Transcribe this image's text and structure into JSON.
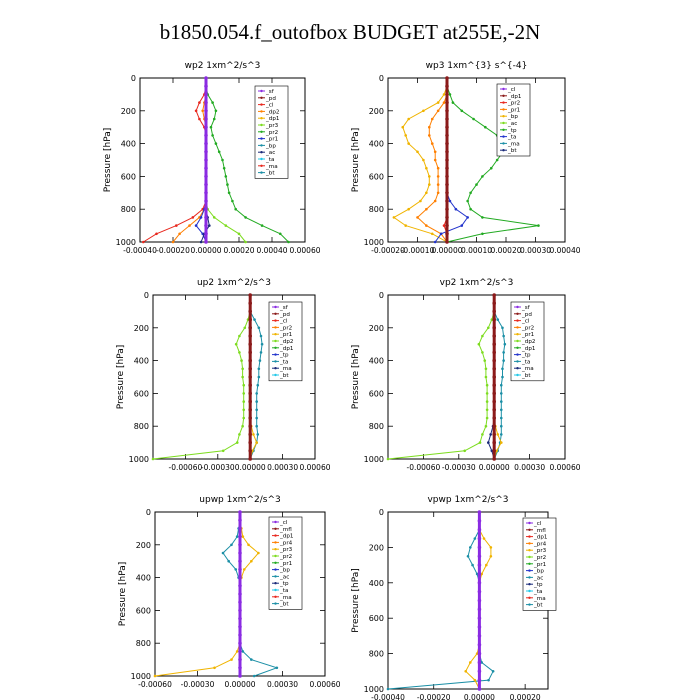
{
  "title": "b1850.054.f_outofbox  BUDGET at255E,-2N",
  "colors": {
    "maroon": "#8b1a1a",
    "red": "#e8271d",
    "orange": "#ff7f00",
    "gold": "#f0b400",
    "green": "#22aa22",
    "lime": "#7ddc1f",
    "blue": "#2233cc",
    "teal": "#1b8fa6",
    "cyan": "#22c8e8",
    "purple": "#8a2be2",
    "navy": "#1a2a7a"
  },
  "chart_data": [
    {
      "type": "line",
      "title": "wp2   1xm^2/s^3",
      "ylabel": "Pressure [hPa]",
      "xlim": [
        -0.0004,
        0.0006
      ],
      "ylim": [
        1000,
        0
      ],
      "xticks": [
        -0.0004,
        -0.0002,
        0,
        0.0002,
        0.0004,
        0.0006
      ],
      "xtick_labels": [
        "-0.00040",
        "-0.00020",
        "0.00000",
        "0.00020",
        "0.00040",
        "0.00060"
      ],
      "yticks": [
        0,
        200,
        400,
        600,
        800,
        1000
      ],
      "y": [
        0,
        50,
        100,
        150,
        200,
        250,
        300,
        350,
        400,
        450,
        500,
        550,
        600,
        650,
        700,
        750,
        800,
        850,
        900,
        950,
        1000
      ],
      "legend": [
        "_sf",
        "_pd",
        "_cl",
        "_dp2",
        "_dp1",
        "_pr3",
        "_pr2",
        "_pr1",
        "_bp",
        "_ac",
        "_ta",
        "_ma",
        "_bt"
      ],
      "series": [
        {
          "name": "_cl",
          "color": "red",
          "values": [
            0,
            0,
            -1e-05,
            -4e-05,
            -6e-05,
            -4e-05,
            -1e-05,
            0,
            0,
            0,
            0,
            0,
            0,
            0,
            0,
            0,
            -2e-05,
            -8e-05,
            -0.00018,
            -0.0003,
            -0.00038
          ]
        },
        {
          "name": "_dp2",
          "color": "orange",
          "values": [
            0,
            0,
            0,
            -1e-05,
            -2e-05,
            -1e-05,
            0,
            0,
            0,
            0,
            0,
            0,
            0,
            0,
            0,
            0,
            -1e-05,
            -4e-05,
            -0.0001,
            -0.00016,
            -0.0002
          ]
        },
        {
          "name": "_pr2",
          "color": "green",
          "values": [
            0,
            0,
            1e-05,
            4e-05,
            6e-05,
            5e-05,
            3e-05,
            4e-05,
            6e-05,
            8e-05,
            0.0001,
            0.00011,
            0.00012,
            0.00013,
            0.00014,
            0.00016,
            0.00018,
            0.00024,
            0.00034,
            0.00045,
            0.0005
          ]
        },
        {
          "name": "_pr1",
          "color": "lime",
          "values": [
            0,
            0,
            0,
            0,
            0,
            0,
            0,
            0,
            0,
            0,
            0,
            0,
            0,
            0,
            0,
            0,
            1e-05,
            5e-05,
            0.00012,
            0.0002,
            0.00024
          ]
        },
        {
          "name": "_dp1",
          "color": "blue",
          "values": [
            0,
            0,
            0,
            0,
            0,
            0,
            0,
            0,
            0,
            0,
            0,
            0,
            0,
            0,
            0,
            0,
            -1e-05,
            -3e-05,
            -6e-05,
            -2e-05,
            0
          ]
        },
        {
          "name": "_bp",
          "color": "navy",
          "values": [
            0,
            0,
            0,
            0,
            0,
            0,
            0,
            0,
            0,
            0,
            0,
            0,
            0,
            0,
            0,
            0,
            0,
            1e-05,
            2e-05,
            -1e-05,
            -3e-05
          ]
        },
        {
          "name": "_bt",
          "color": "purple",
          "values": [
            0,
            0,
            0,
            0,
            0,
            0,
            0,
            0,
            0,
            0,
            0,
            0,
            0,
            0,
            0,
            0,
            0,
            0,
            0,
            0,
            0
          ],
          "bold": true
        }
      ]
    },
    {
      "type": "line",
      "title": "wp3   1xm^{3} s^{-4}",
      "ylabel": "Pressure [hPa]",
      "xlim": [
        -0.0002,
        0.0004
      ],
      "ylim": [
        1000,
        0
      ],
      "xticks": [
        -0.0002,
        -0.0001,
        0,
        0.0001,
        0.0002,
        0.0003,
        0.0004
      ],
      "xtick_labels": [
        "-0.00020",
        "-0.00010",
        "0.00000",
        "0.00010",
        "0.00020",
        "0.00030",
        "0.00040"
      ],
      "yticks": [
        0,
        200,
        400,
        600,
        800,
        1000
      ],
      "y": [
        0,
        50,
        100,
        150,
        200,
        250,
        300,
        350,
        400,
        450,
        500,
        550,
        600,
        650,
        700,
        750,
        800,
        850,
        900,
        950,
        1000
      ],
      "legend": [
        "_cl",
        "_dp1",
        "_pr2",
        "_pr1",
        "_bp",
        "_ac",
        "_tp",
        "_ta",
        "_ma",
        "_bt"
      ],
      "series": [
        {
          "name": "_pr2",
          "color": "gold",
          "values": [
            0,
            0,
            -1e-05,
            -3e-05,
            -8e-05,
            -0.00013,
            -0.00015,
            -0.00014,
            -0.00013,
            -0.0001,
            -8e-05,
            -7e-05,
            -6e-05,
            -6e-05,
            -7e-05,
            -9e-05,
            -0.00013,
            -0.00018,
            -0.00014,
            -5e-05,
            0
          ]
        },
        {
          "name": "_pr1",
          "color": "orange",
          "values": [
            0,
            0,
            0,
            -1e-05,
            -3e-05,
            -5e-05,
            -6e-05,
            -6e-05,
            -5e-05,
            -4e-05,
            -4e-05,
            -3e-05,
            -3e-05,
            -3e-05,
            -3e-05,
            -4e-05,
            -7e-05,
            -0.0001,
            -7e-05,
            -2e-05,
            0
          ]
        },
        {
          "name": "_ac",
          "color": "green",
          "values": [
            0,
            0,
            1e-05,
            2e-05,
            5e-05,
            9e-05,
            0.00013,
            0.00017,
            0.00019,
            0.00019,
            0.00017,
            0.00015,
            0.00012,
            0.0001,
            8e-05,
            7e-05,
            8e-05,
            0.00012,
            0.00031,
            0.00012,
            0
          ]
        },
        {
          "name": "_tp",
          "color": "blue",
          "values": [
            0,
            0,
            0,
            0,
            0,
            0,
            0,
            0,
            0,
            0,
            0,
            0,
            0,
            0,
            0,
            1e-05,
            3e-05,
            7e-05,
            5e-05,
            -2e-05,
            -4e-05
          ]
        },
        {
          "name": "_cl",
          "color": "red",
          "values": [
            0,
            0,
            0,
            0,
            0,
            0,
            0,
            0,
            0,
            0,
            0,
            0,
            0,
            0,
            0,
            0,
            0,
            0,
            -1e-05,
            0,
            0
          ]
        },
        {
          "name": "_bt",
          "color": "maroon",
          "values": [
            0,
            0,
            0,
            0,
            0,
            0,
            0,
            0,
            0,
            0,
            0,
            0,
            0,
            0,
            0,
            0,
            0,
            0,
            0,
            0,
            0
          ],
          "bold": true
        }
      ]
    },
    {
      "type": "line",
      "title": "up2   1xm^2/s^3",
      "ylabel": "Pressure [hPa]",
      "xlim": [
        -0.0009,
        0.0006
      ],
      "ylim": [
        1000,
        0
      ],
      "xticks": [
        -0.0006,
        -0.0003,
        0,
        0.0003,
        0.0006
      ],
      "xtick_labels": [
        "-0.00060",
        "-0.00030",
        "0.00000",
        "0.00030",
        "0.00060"
      ],
      "yticks": [
        0,
        200,
        400,
        600,
        800,
        1000
      ],
      "y": [
        0,
        50,
        100,
        150,
        200,
        250,
        300,
        350,
        400,
        450,
        500,
        550,
        600,
        650,
        700,
        750,
        800,
        850,
        900,
        950,
        1000
      ],
      "legend": [
        "_sf",
        "_pd",
        "_cl",
        "_pr2",
        "_pr1",
        "_dp2",
        "_dp1",
        "_tp",
        "_ta",
        "_ma",
        "_bt"
      ],
      "series": [
        {
          "name": "_dp2",
          "color": "lime",
          "values": [
            0,
            0,
            0,
            -2e-05,
            -5e-05,
            -0.0001,
            -0.00013,
            -0.0001,
            -8e-05,
            -7e-05,
            -7e-05,
            -6e-05,
            -6e-05,
            -6e-05,
            -6e-05,
            -6e-05,
            -7e-05,
            -0.0001,
            -0.00012,
            -0.00025,
            -0.0009
          ]
        },
        {
          "name": "_tp",
          "color": "teal",
          "values": [
            0,
            0,
            0,
            4e-05,
            8e-05,
            0.0001,
            0.00011,
            0.0001,
            9e-05,
            8e-05,
            8e-05,
            7e-05,
            6e-05,
            6e-05,
            6e-05,
            6e-05,
            6e-05,
            7e-05,
            6e-05,
            3e-05,
            0
          ]
        },
        {
          "name": "_pr2",
          "color": "gold",
          "values": [
            0,
            0,
            0,
            0,
            0,
            0,
            0,
            0,
            0,
            0,
            0,
            0,
            0,
            0,
            0,
            0,
            1e-05,
            3e-05,
            6e-05,
            2e-05,
            0
          ]
        },
        {
          "name": "_bt",
          "color": "maroon",
          "values": [
            0,
            0,
            0,
            0,
            0,
            0,
            0,
            0,
            0,
            0,
            0,
            0,
            0,
            0,
            0,
            0,
            0,
            0,
            0,
            0,
            0
          ],
          "bold": true
        }
      ]
    },
    {
      "type": "line",
      "title": "vp2   1xm^2/s^3",
      "ylabel": "Pressure [hPa]",
      "xlim": [
        -0.0009,
        0.0006
      ],
      "ylim": [
        1000,
        0
      ],
      "xticks": [
        -0.0006,
        -0.0003,
        0,
        0.0003,
        0.0006
      ],
      "xtick_labels": [
        "-0.00060",
        "-0.00030",
        "0.00000",
        "0.00030",
        "0.00060"
      ],
      "yticks": [
        0,
        200,
        400,
        600,
        800,
        1000
      ],
      "y": [
        0,
        50,
        100,
        150,
        200,
        250,
        300,
        350,
        400,
        450,
        500,
        550,
        600,
        650,
        700,
        750,
        800,
        850,
        900,
        950,
        1000
      ],
      "legend": [
        "_sf",
        "_pd",
        "_cl",
        "_pr2",
        "_pr1",
        "_dp2",
        "_dp1",
        "_tp",
        "_ta",
        "_ma",
        "_bt"
      ],
      "series": [
        {
          "name": "_dp2",
          "color": "lime",
          "values": [
            0,
            0,
            0,
            -2e-05,
            -5e-05,
            -0.0001,
            -0.00013,
            -0.0001,
            -8e-05,
            -7e-05,
            -7e-05,
            -6e-05,
            -6e-05,
            -6e-05,
            -6e-05,
            -6e-05,
            -7e-05,
            -0.0001,
            -0.00012,
            -0.00025,
            -0.0009
          ]
        },
        {
          "name": "_tp",
          "color": "teal",
          "values": [
            0,
            0,
            0,
            3e-05,
            7e-05,
            8e-05,
            9e-05,
            8e-05,
            8e-05,
            7e-05,
            7e-05,
            6e-05,
            6e-05,
            6e-05,
            6e-05,
            6e-05,
            6e-05,
            6e-05,
            5e-05,
            3e-05,
            0
          ]
        },
        {
          "name": "_pr2",
          "color": "gold",
          "values": [
            0,
            0,
            0,
            0,
            0,
            0,
            0,
            0,
            0,
            0,
            0,
            0,
            0,
            0,
            0,
            0,
            1e-05,
            3e-05,
            6e-05,
            2e-05,
            0
          ]
        },
        {
          "name": "_dp1",
          "color": "navy",
          "values": [
            0,
            0,
            0,
            0,
            0,
            0,
            0,
            0,
            0,
            0,
            0,
            0,
            0,
            0,
            0,
            0,
            -1e-05,
            -3e-05,
            -5e-05,
            -2e-05,
            0
          ]
        },
        {
          "name": "_bt",
          "color": "maroon",
          "values": [
            0,
            0,
            0,
            0,
            0,
            0,
            0,
            0,
            0,
            0,
            0,
            0,
            0,
            0,
            0,
            0,
            0,
            0,
            0,
            0,
            0
          ],
          "bold": true
        }
      ]
    },
    {
      "type": "line",
      "title": "upwp   1xm^2/s^3",
      "ylabel": "Pressure [hPa]",
      "xlim": [
        -0.0006,
        0.0006
      ],
      "ylim": [
        1000,
        0
      ],
      "xticks": [
        -0.0006,
        -0.0003,
        0,
        0.0003,
        0.0006
      ],
      "xtick_labels": [
        "-0.00060",
        "-0.00030",
        "0.00000",
        "0.00030",
        "0.00060"
      ],
      "yticks": [
        0,
        200,
        400,
        600,
        800,
        1000
      ],
      "y": [
        0,
        50,
        100,
        150,
        200,
        250,
        300,
        350,
        400,
        450,
        500,
        550,
        600,
        650,
        700,
        750,
        800,
        850,
        900,
        950,
        1000
      ],
      "legend": [
        "_cl",
        "_mfl",
        "_dp1",
        "_pr4",
        "_pr3",
        "_pr2",
        "_pr1",
        "_bp",
        "_ac",
        "_tp",
        "_ta",
        "_ma",
        "_bt"
      ],
      "series": [
        {
          "name": "_tp",
          "color": "teal",
          "values": [
            0,
            0,
            -1e-05,
            -2e-05,
            -6e-05,
            -0.00012,
            -8e-05,
            -3e-05,
            -1e-05,
            0,
            0,
            0,
            0,
            0,
            0,
            0,
            0,
            2e-05,
            8e-05,
            0.00026,
            0.0001
          ]
        },
        {
          "name": "_pr2",
          "color": "gold",
          "values": [
            0,
            0,
            1e-05,
            2e-05,
            6e-05,
            0.00013,
            8e-05,
            3e-05,
            1e-05,
            0,
            0,
            0,
            0,
            0,
            0,
            0,
            0,
            -2e-05,
            -6e-05,
            -0.00018,
            -0.0006
          ]
        },
        {
          "name": "_bt",
          "color": "purple",
          "values": [
            0,
            0,
            0,
            0,
            0,
            0,
            0,
            0,
            0,
            0,
            0,
            0,
            0,
            0,
            0,
            0,
            0,
            0,
            0,
            0,
            0
          ],
          "bold": true
        }
      ]
    },
    {
      "type": "line",
      "title": "vpwp   1xm^2/s^3",
      "ylabel": "Pressure [hPa]",
      "xlim": [
        -0.0004,
        0.0003
      ],
      "ylim": [
        1000,
        0
      ],
      "xticks": [
        -0.0004,
        -0.0002,
        0,
        0.0002
      ],
      "xtick_labels": [
        "-0.00040",
        "-0.00020",
        "0.00000",
        "0.00020"
      ],
      "yticks": [
        0,
        200,
        400,
        600,
        800,
        1000
      ],
      "y": [
        0,
        50,
        100,
        150,
        200,
        250,
        300,
        350,
        400,
        450,
        500,
        550,
        600,
        650,
        700,
        750,
        800,
        850,
        900,
        950,
        1000
      ],
      "legend": [
        "_cl",
        "_mfl",
        "_dp1",
        "_pr4",
        "_pr3",
        "_pr2",
        "_pr1",
        "_bp",
        "_ac",
        "_tp",
        "_ta",
        "_ma",
        "_bt"
      ],
      "series": [
        {
          "name": "_tp",
          "color": "teal",
          "values": [
            0,
            0,
            0,
            -2e-05,
            -4e-05,
            -5e-05,
            -3e-05,
            -1e-05,
            0,
            0,
            0,
            0,
            0,
            0,
            0,
            0,
            0,
            1e-05,
            6e-05,
            4e-05,
            -0.0004
          ]
        },
        {
          "name": "_pr2",
          "color": "gold",
          "values": [
            0,
            0,
            0,
            2e-05,
            5e-05,
            5e-05,
            3e-05,
            1e-05,
            0,
            0,
            0,
            0,
            0,
            0,
            0,
            0,
            -1e-05,
            -4e-05,
            -6e-05,
            -2e-05,
            0
          ]
        },
        {
          "name": "_bt",
          "color": "purple",
          "values": [
            0,
            0,
            0,
            0,
            0,
            0,
            0,
            0,
            0,
            0,
            0,
            0,
            0,
            0,
            0,
            0,
            0,
            0,
            0,
            0,
            0
          ],
          "bold": true
        }
      ]
    }
  ]
}
